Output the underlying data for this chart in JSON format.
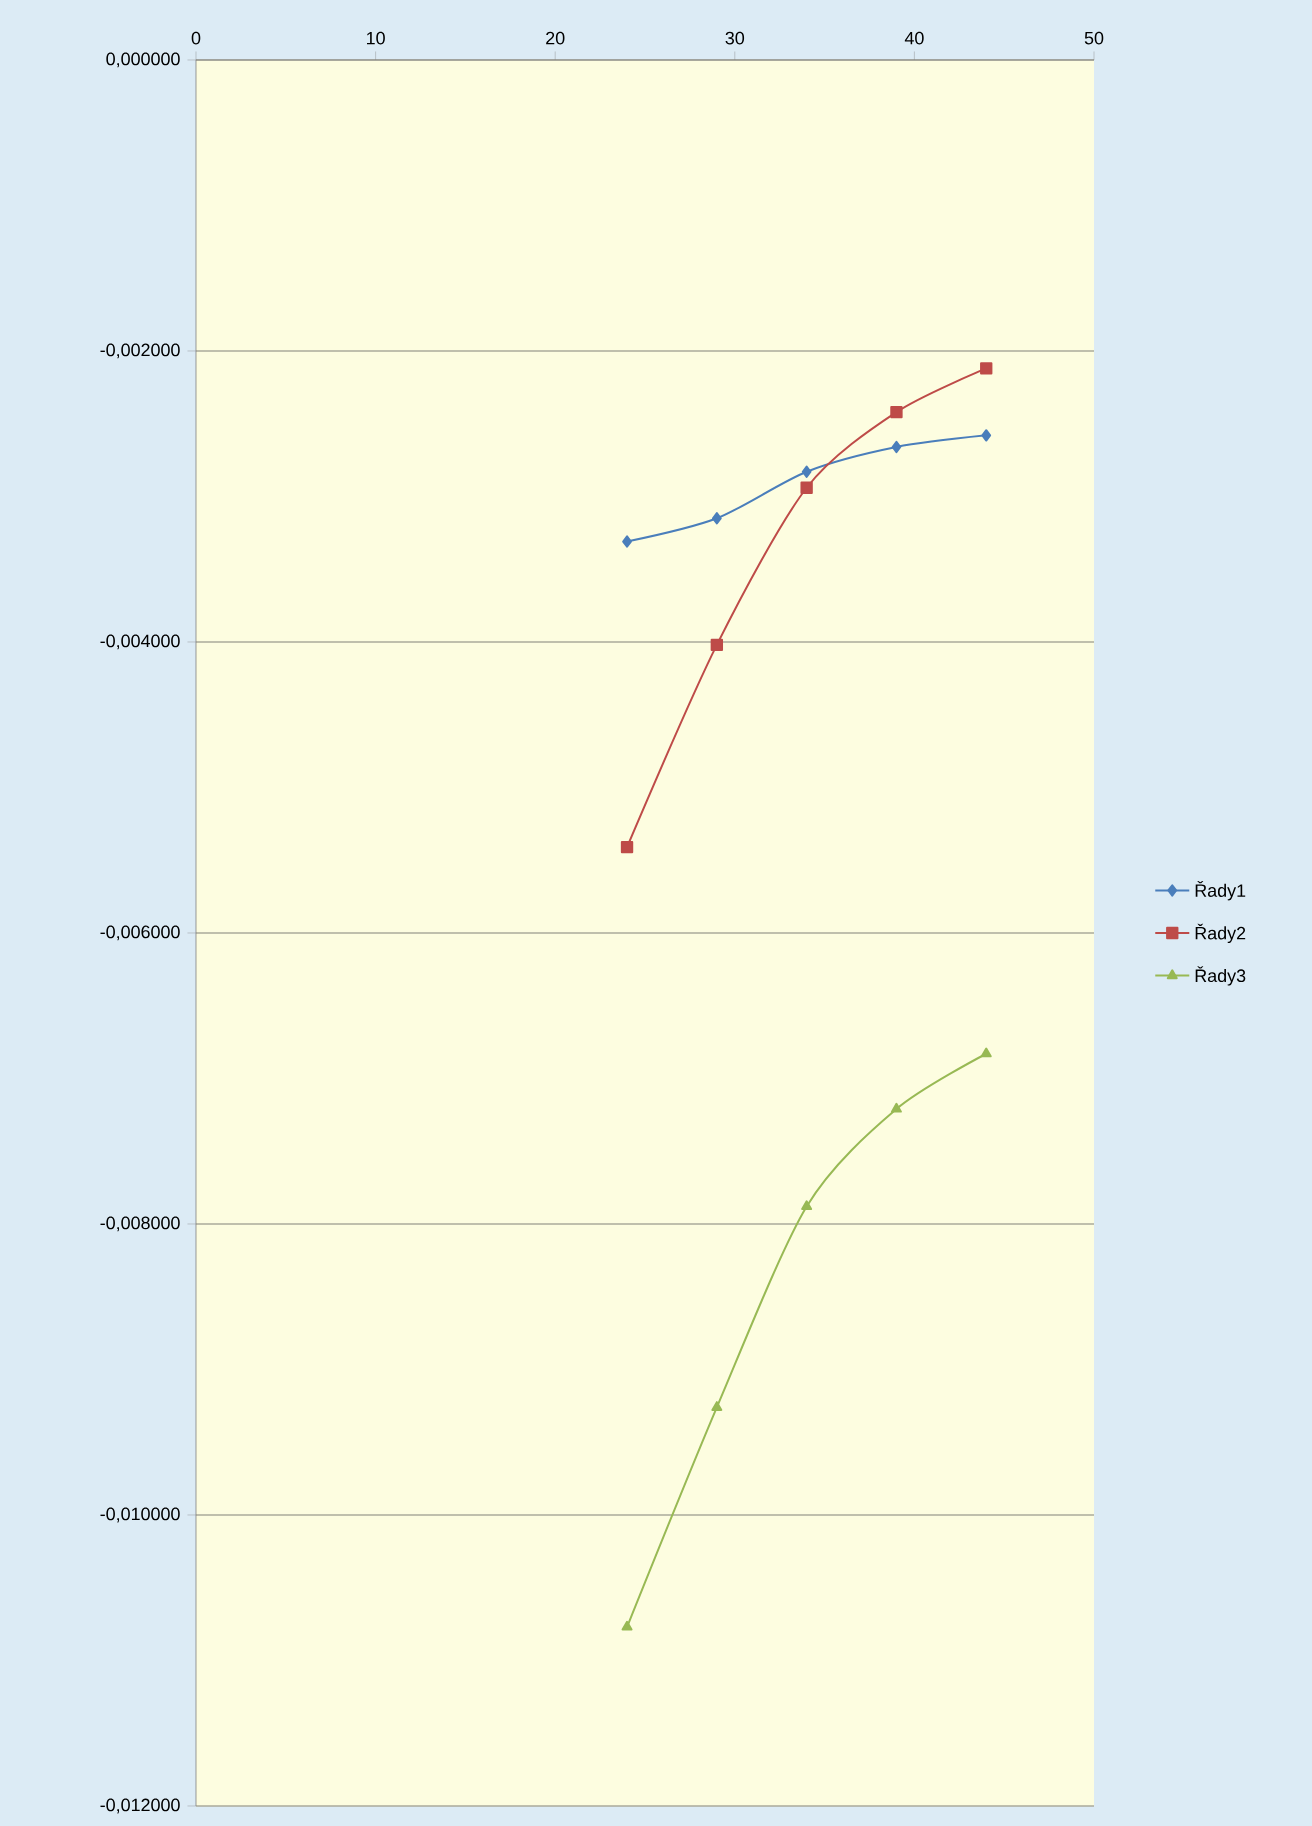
{
  "chart_data": {
    "type": "line",
    "x": [
      24,
      29,
      34,
      39,
      44
    ],
    "series": [
      {
        "name": "Řady1",
        "color": "#4a7ebb",
        "marker": "diamond",
        "values": [
          -0.00331,
          -0.00315,
          -0.00283,
          -0.00266,
          -0.00258
        ]
      },
      {
        "name": "Řady2",
        "color": "#be4b48",
        "marker": "square",
        "values": [
          -0.00541,
          -0.00402,
          -0.00294,
          -0.00242,
          -0.00212
        ]
      },
      {
        "name": "Řady3",
        "color": "#98b954",
        "marker": "triangle",
        "values": [
          -0.01077,
          -0.00926,
          -0.00788,
          -0.00721,
          -0.00683
        ]
      }
    ],
    "xlim": [
      0,
      50
    ],
    "xticks": [
      0,
      10,
      20,
      30,
      40,
      50
    ],
    "ylim": [
      -0.012,
      0
    ],
    "yticks": [
      {
        "value": 0,
        "label": "0,000000"
      },
      {
        "value": -0.002,
        "label": "-0,002000"
      },
      {
        "value": -0.004,
        "label": "-0,004000"
      },
      {
        "value": -0.006,
        "label": "-0,006000"
      },
      {
        "value": -0.008,
        "label": "-0,008000"
      },
      {
        "value": -0.01,
        "label": "-0,010000"
      },
      {
        "value": -0.012,
        "label": "-0,012000"
      }
    ],
    "grid": "y",
    "legend": "right",
    "line_style": "solid"
  }
}
